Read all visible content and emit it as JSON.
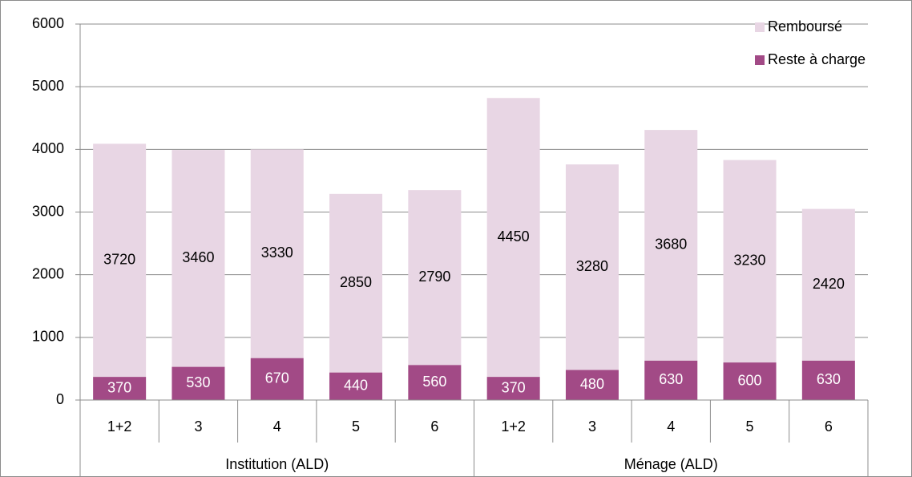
{
  "chart_data": {
    "type": "stacked_bar",
    "categories": [
      "1+2",
      "3",
      "4",
      "5",
      "6",
      "1+2",
      "3",
      "4",
      "5",
      "6"
    ],
    "groups": [
      "Institution (ALD)",
      "Ménage (ALD)"
    ],
    "series": [
      {
        "name": "Reste à charge",
        "color": "#a24a86",
        "values": [
          370,
          530,
          670,
          440,
          560,
          370,
          480,
          630,
          600,
          630
        ]
      },
      {
        "name": "Remboursé",
        "color": "#e8d6e4",
        "values": [
          3720,
          3460,
          3330,
          2850,
          2790,
          4450,
          3280,
          3680,
          3230,
          2420
        ]
      }
    ],
    "ylim": [
      0,
      6000
    ],
    "yticks": [
      0,
      1000,
      2000,
      3000,
      4000,
      5000,
      6000
    ],
    "grid": true,
    "legend": "top-right"
  }
}
